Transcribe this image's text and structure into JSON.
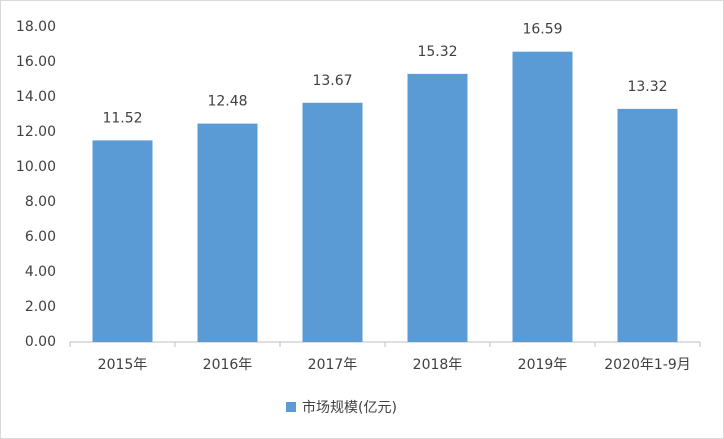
{
  "chart_data": {
    "type": "bar",
    "categories": [
      "2015年",
      "2016年",
      "2017年",
      "2018年",
      "2019年",
      "2020年1-9月"
    ],
    "series": [
      {
        "name": "市场规模(亿元)",
        "color": "#5b9bd5",
        "values": [
          11.52,
          12.48,
          13.67,
          15.32,
          16.59,
          13.32
        ]
      }
    ],
    "ylim": [
      0,
      18
    ],
    "yticks": [
      {
        "value": 0,
        "label": "0.00"
      },
      {
        "value": 2,
        "label": "2.00"
      },
      {
        "value": 4,
        "label": "4.00"
      },
      {
        "value": 6,
        "label": "6.00"
      },
      {
        "value": 8,
        "label": "8.00"
      },
      {
        "value": 10,
        "label": "10.00"
      },
      {
        "value": 12,
        "label": "12.00"
      },
      {
        "value": 14,
        "label": "14.00"
      },
      {
        "value": 16,
        "label": "16.00"
      },
      {
        "value": 18,
        "label": "18.00"
      }
    ],
    "grid": false,
    "legend": "bottom"
  }
}
